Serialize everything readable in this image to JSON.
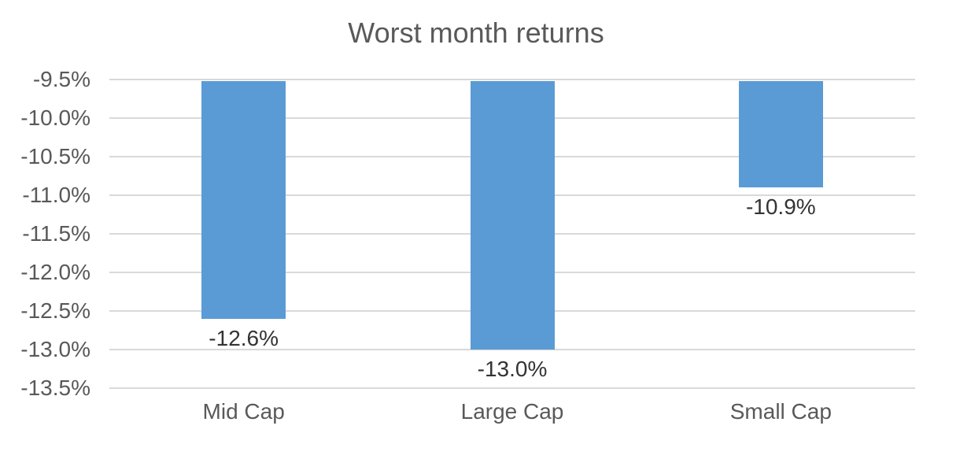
{
  "chart_data": {
    "type": "bar",
    "title": "Worst month returns",
    "categories": [
      "Mid Cap",
      "Large Cap",
      "Small Cap"
    ],
    "values": [
      -12.6,
      -13.0,
      -10.9
    ],
    "data_labels": [
      "-12.6%",
      "-13.0%",
      "-10.9%"
    ],
    "y_ticks": [
      "-9.5%",
      "-10.0%",
      "-10.5%",
      "-11.0%",
      "-11.5%",
      "-12.0%",
      "-12.5%",
      "-13.0%",
      "-13.5%"
    ],
    "ylim": [
      -13.5,
      -9.5
    ],
    "bar_baseline": -9.5,
    "grid": true,
    "legend": false,
    "xlabel": "",
    "ylabel": "",
    "colors": {
      "bar": "#5B9BD5",
      "gridline": "#D9D9D9",
      "axis_text": "#595959",
      "category_text": "#595959",
      "data_label_text": "#333333",
      "title_text": "#595959",
      "background": "#FFFFFF"
    }
  }
}
